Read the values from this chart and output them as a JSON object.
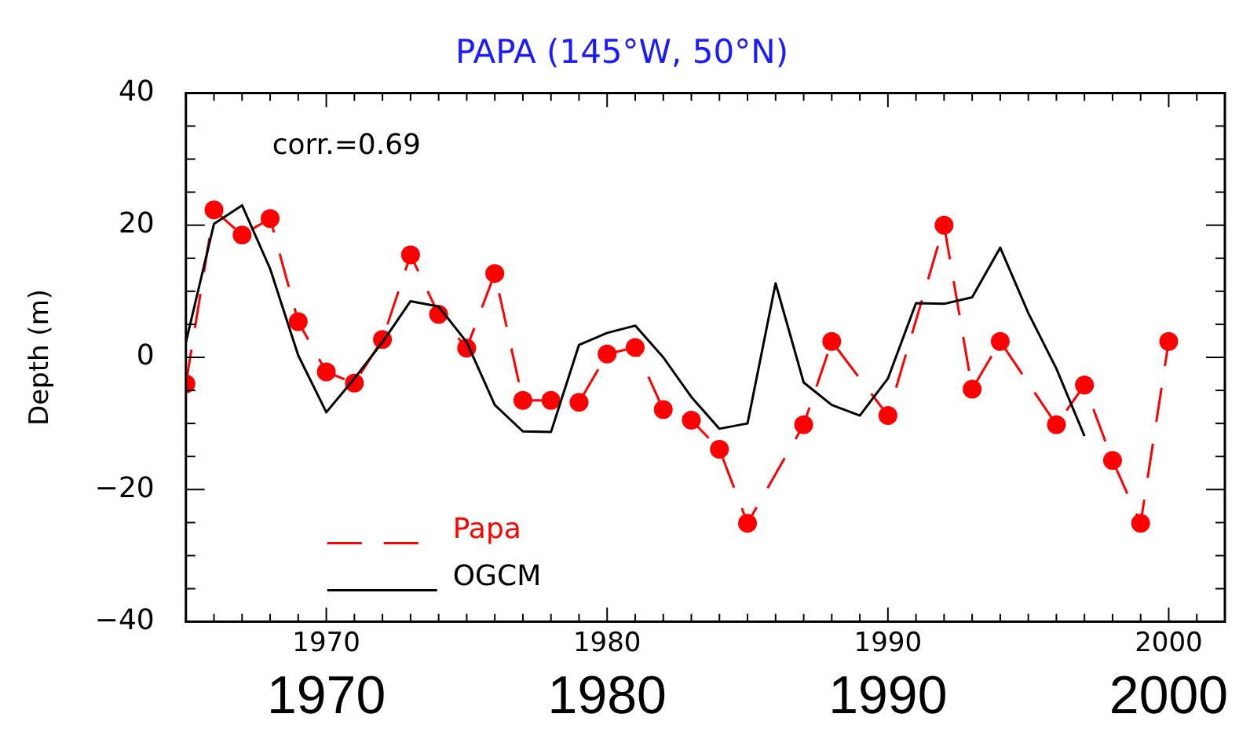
{
  "chart_data": {
    "type": "line",
    "title": "PAPA (145°W, 50°N)",
    "ylabel": "Depth (m)",
    "annotations": [
      "corr.=0.69"
    ],
    "x": [
      1965,
      1966,
      1967,
      1968,
      1969,
      1970,
      1971,
      1972,
      1973,
      1974,
      1975,
      1976,
      1977,
      1978,
      1979,
      1980,
      1981,
      1982,
      1983,
      1984,
      1985,
      1986,
      1987,
      1988,
      1989,
      1990,
      1991,
      1992,
      1993,
      1994,
      1995,
      1996,
      1997
    ],
    "series": [
      {
        "name": "Papa",
        "color": "#ff0000",
        "line_style": "dashed",
        "marker": "circle",
        "x": [
          1965,
          1966,
          1967,
          1968,
          1969,
          1970,
          1971,
          1972,
          1973,
          1974,
          1975,
          1976,
          1977,
          1978,
          1979,
          1980,
          1981,
          1982,
          1983,
          1984,
          1985,
          1987,
          1988,
          1990,
          1992,
          1993,
          1994,
          1996,
          1997,
          1998,
          1999,
          2000
        ],
        "values": [
          -4,
          22.3,
          18.5,
          21,
          5.4,
          -2.2,
          -3.9,
          2.7,
          15.5,
          6.5,
          1.4,
          12.7,
          -6.5,
          -6.5,
          -6.8,
          0.5,
          1.5,
          -7.9,
          -9.5,
          -13.9,
          -25.1,
          -10.2,
          2.4,
          -8.8,
          20,
          -4.8,
          2.4,
          -10.2,
          -4.2,
          -15.6,
          -25.1,
          2.4
        ]
      },
      {
        "name": "OGCM",
        "color": "#000000",
        "line_style": "solid",
        "marker": "none",
        "values": [
          2.3,
          20.2,
          23,
          13.4,
          0.3,
          -8.3,
          -3.2,
          2.3,
          8.5,
          7.7,
          2.3,
          -7.2,
          -11.2,
          -11.3,
          1.9,
          3.7,
          4.8,
          0,
          -6,
          -10.8,
          -10,
          11.2,
          -3.8,
          -7.2,
          -8.8,
          -3.2,
          8.2,
          8.1,
          9.1,
          16.6,
          6.7,
          -1.7,
          -11.9
        ]
      }
    ],
    "xlim": [
      1965,
      2002
    ],
    "xticks": [
      1970,
      1980,
      1990,
      2000
    ],
    "x2lim": [
      1965,
      2002
    ],
    "x2ticks": [
      1970,
      1980,
      1990,
      2000
    ],
    "ylim": [
      -40,
      40
    ],
    "yticks": [
      -40,
      {
        "value": -35,
        "label": null
      },
      {
        "value": -30,
        "label": null
      },
      {
        "value": -25,
        "label": null
      },
      -20,
      {
        "value": -15,
        "label": null
      },
      {
        "value": -10,
        "label": null
      },
      {
        "value": -5,
        "label": null
      },
      0,
      {
        "value": 5,
        "label": null
      },
      {
        "value": 10,
        "label": null
      },
      {
        "value": 15,
        "label": null
      },
      20,
      {
        "value": 25,
        "label": null
      },
      {
        "value": 30,
        "label": null
      },
      {
        "value": 35,
        "label": null
      },
      40
    ],
    "grid": false,
    "legend": "bottom left"
  }
}
